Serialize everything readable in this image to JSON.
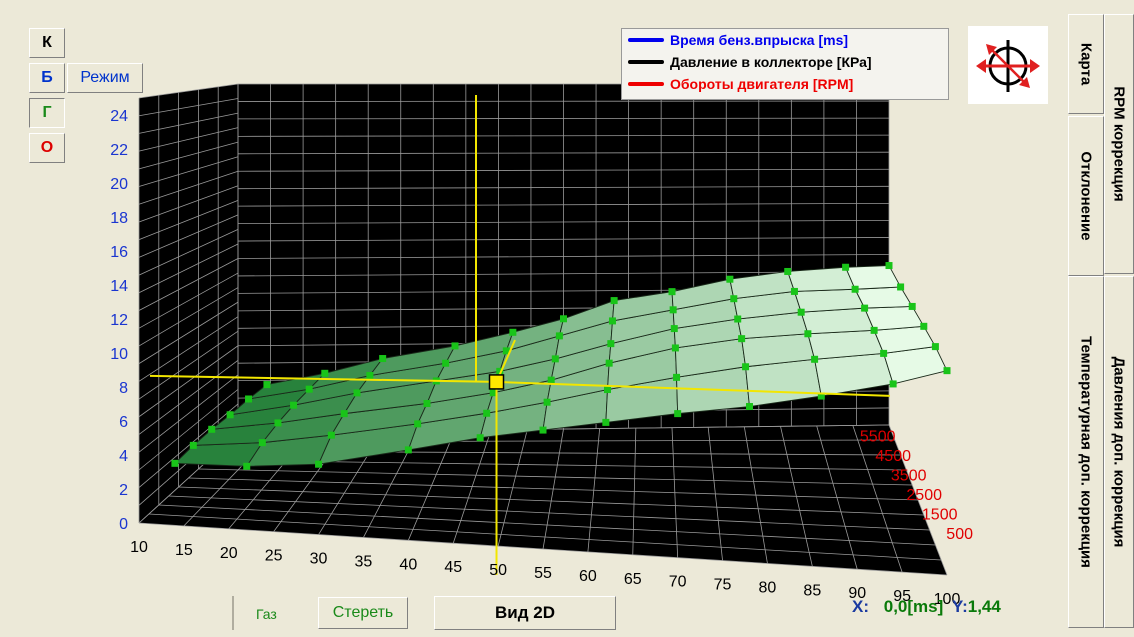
{
  "left_buttons": [
    {
      "label": "К",
      "color": "#000000"
    },
    {
      "label": "Б",
      "color": "#0033cc"
    },
    {
      "label": "Г",
      "color": "#1a8a1a"
    },
    {
      "label": "О",
      "color": "#dd0000"
    }
  ],
  "mode_button": "Режим",
  "legend": [
    {
      "label": "Время бенз.впрыска [ms]",
      "color": "#0000ee"
    },
    {
      "label": "Давление в коллекторе [КРа]",
      "color": "#000000"
    },
    {
      "label": "Обороты двигателя [RPM]",
      "color": "#ee0000"
    }
  ],
  "compass_icon": "target-arrows-icon",
  "tabs": [
    {
      "label": "RPM коррекция"
    },
    {
      "label": "Карта"
    },
    {
      "label": "Отклонение"
    },
    {
      "label": "Давления доп. коррекция"
    },
    {
      "label": "Температурная доп. коррекция"
    }
  ],
  "bottom": {
    "gas_label": "Газ",
    "clear_label": "Стереть",
    "view_label": "Вид 2D"
  },
  "readout": {
    "x_label": "X:",
    "x_value": "0,0[ms]",
    "y_label": "Y:",
    "y_value": "1,44"
  },
  "chart_data": {
    "type": "surface",
    "y_ticks": [
      0,
      2,
      4,
      6,
      8,
      10,
      12,
      14,
      16,
      18,
      20,
      22,
      24
    ],
    "x_ticks": [
      10,
      15,
      20,
      25,
      30,
      35,
      40,
      45,
      50,
      55,
      60,
      65,
      70,
      75,
      80,
      85,
      90,
      95,
      100
    ],
    "z_ticks": [
      500,
      1500,
      2500,
      3500,
      4500,
      5500
    ],
    "x_range": [
      10,
      100
    ],
    "y_range": [
      0,
      25
    ],
    "z_range": [
      500,
      5500
    ],
    "grid": true,
    "legend_position": "top-right",
    "series": [
      {
        "rpm": 500,
        "points": [
          [
            14,
            3.7
          ],
          [
            22,
            3.8
          ],
          [
            30,
            4.2
          ],
          [
            40,
            5.4
          ],
          [
            48,
            6.4
          ],
          [
            55,
            7.1
          ],
          [
            62,
            7.8
          ],
          [
            70,
            8.6
          ],
          [
            78,
            9.3
          ],
          [
            86,
            10.2
          ],
          [
            94,
            11.2
          ],
          [
            100,
            12.2
          ]
        ]
      },
      {
        "rpm": 1500,
        "points": [
          [
            14,
            3.9
          ],
          [
            22,
            4.3
          ],
          [
            30,
            5.0
          ],
          [
            40,
            6.0
          ],
          [
            48,
            6.9
          ],
          [
            55,
            7.8
          ],
          [
            62,
            8.8
          ],
          [
            70,
            9.8
          ],
          [
            78,
            10.7
          ],
          [
            86,
            11.4
          ],
          [
            94,
            12.0
          ],
          [
            100,
            12.6
          ]
        ]
      },
      {
        "rpm": 2500,
        "points": [
          [
            14,
            4.0
          ],
          [
            22,
            4.6
          ],
          [
            30,
            5.4
          ],
          [
            40,
            6.3
          ],
          [
            48,
            7.2
          ],
          [
            55,
            8.2
          ],
          [
            62,
            9.5
          ],
          [
            70,
            10.7
          ],
          [
            78,
            11.5
          ],
          [
            86,
            12.0
          ],
          [
            94,
            12.4
          ],
          [
            100,
            12.8
          ]
        ]
      },
      {
        "rpm": 3500,
        "points": [
          [
            14,
            4.0
          ],
          [
            22,
            4.8
          ],
          [
            30,
            5.8
          ],
          [
            40,
            6.8
          ],
          [
            48,
            7.6
          ],
          [
            55,
            8.6
          ],
          [
            62,
            9.8
          ],
          [
            70,
            11.0
          ],
          [
            78,
            11.8
          ],
          [
            86,
            12.4
          ],
          [
            94,
            12.8
          ],
          [
            100,
            13.0
          ]
        ]
      },
      {
        "rpm": 4500,
        "points": [
          [
            14,
            4.1
          ],
          [
            22,
            4.9
          ],
          [
            30,
            6.0
          ],
          [
            40,
            7.0
          ],
          [
            48,
            8.0
          ],
          [
            55,
            9.2
          ],
          [
            62,
            10.4
          ],
          [
            70,
            11.3
          ],
          [
            78,
            12.2
          ],
          [
            86,
            12.8
          ],
          [
            94,
            13.0
          ],
          [
            100,
            13.2
          ]
        ]
      },
      {
        "rpm": 5500,
        "points": [
          [
            14,
            4.1
          ],
          [
            22,
            5.0
          ],
          [
            30,
            6.2
          ],
          [
            40,
            7.2
          ],
          [
            48,
            8.3
          ],
          [
            55,
            9.4
          ],
          [
            62,
            10.9
          ],
          [
            70,
            11.6
          ],
          [
            78,
            12.6
          ],
          [
            86,
            13.2
          ],
          [
            94,
            13.5
          ],
          [
            100,
            13.6
          ]
        ]
      }
    ],
    "cursor": {
      "x": 48,
      "y": 7.4,
      "rpm": 3000
    }
  }
}
